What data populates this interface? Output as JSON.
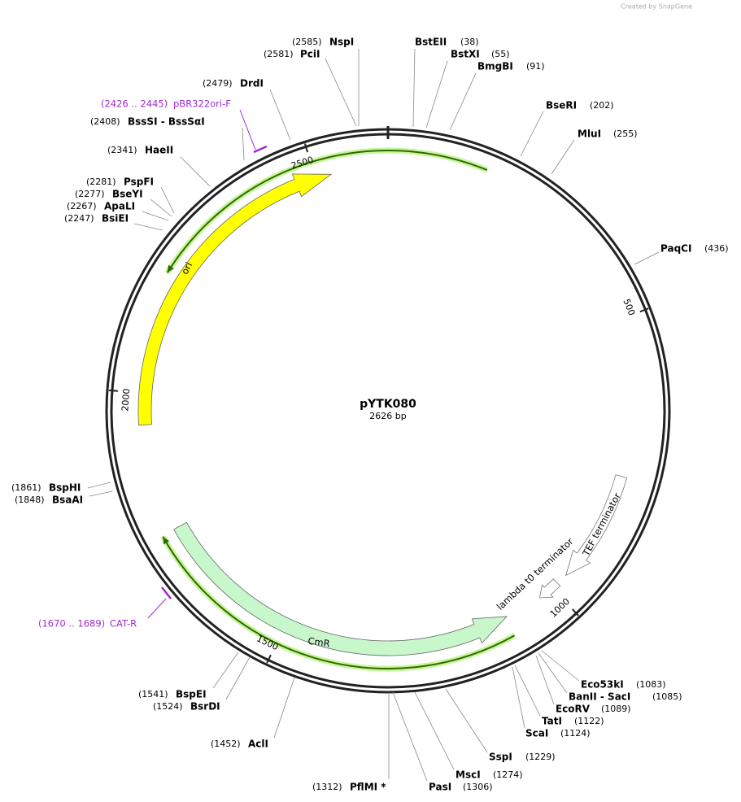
{
  "header": {
    "credit": "Created by SnapGene"
  },
  "map": {
    "name": "pYTK080",
    "size": "2626 bp",
    "ticks": [
      "500",
      "1000",
      "1500",
      "2000",
      "2500"
    ],
    "features": [
      {
        "label": "ori"
      },
      {
        "label": "CmR"
      },
      {
        "label": "TEF terminator"
      },
      {
        "label": "lambda t0 terminator"
      }
    ],
    "primers": [
      {
        "name": "pBR322ori-F",
        "range": "(2426 .. 2445)"
      },
      {
        "name": "CAT-R",
        "range": "(1670 .. 1689)"
      }
    ],
    "enzymes": [
      {
        "name": "NspI",
        "position": "(2585)"
      },
      {
        "name": "PciI",
        "position": "(2581)"
      },
      {
        "name": "DrdI",
        "position": "(2479)"
      },
      {
        "name": "BssSI  -  BssSαI",
        "position": "(2408)"
      },
      {
        "name": "HaeII",
        "position": "(2341)"
      },
      {
        "name": "PspFI",
        "position": "(2281)"
      },
      {
        "name": "BseYI",
        "position": "(2277)"
      },
      {
        "name": "ApaLI",
        "position": "(2267)"
      },
      {
        "name": "BsiEI",
        "position": "(2247)"
      },
      {
        "name": "BspHI",
        "position": "(1861)"
      },
      {
        "name": "BsaAI",
        "position": "(1848)"
      },
      {
        "name": "BspEI",
        "position": "(1541)"
      },
      {
        "name": "BsrDI",
        "position": "(1524)"
      },
      {
        "name": "AclI",
        "position": "(1452)"
      },
      {
        "name": "PflMI *",
        "position": "(1312)"
      },
      {
        "name": "BstEII",
        "position": "(38)"
      },
      {
        "name": "BstXI",
        "position": "(55)"
      },
      {
        "name": "BmgBI",
        "position": "(91)"
      },
      {
        "name": "BseRI",
        "position": "(202)"
      },
      {
        "name": "MluI",
        "position": "(255)"
      },
      {
        "name": "PaqCI",
        "position": "(436)"
      },
      {
        "name": "Eco53kI",
        "position": "(1083)"
      },
      {
        "name": "BanII  -  SacI",
        "position": "(1085)"
      },
      {
        "name": "EcoRV",
        "position": "(1089)"
      },
      {
        "name": "TatI",
        "position": "(1122)"
      },
      {
        "name": "ScaI",
        "position": "(1124)"
      },
      {
        "name": "SspI",
        "position": "(1229)"
      },
      {
        "name": "MscI",
        "position": "(1274)"
      },
      {
        "name": "PasI",
        "position": "(1306)"
      }
    ]
  }
}
